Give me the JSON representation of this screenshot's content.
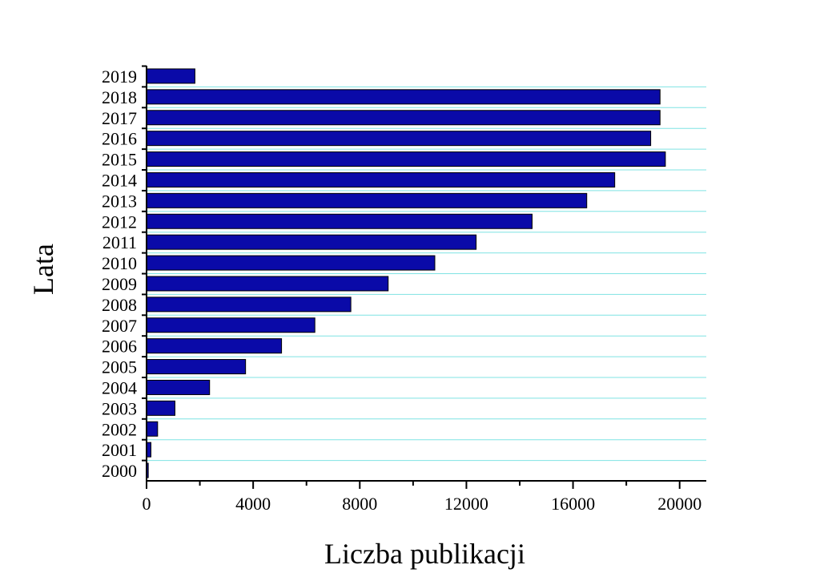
{
  "chart_data": {
    "type": "bar",
    "orientation": "horizontal",
    "title": "",
    "xlabel": "Liczba publikacji",
    "ylabel": "Lata",
    "categories": [
      "2000",
      "2001",
      "2002",
      "2003",
      "2004",
      "2005",
      "2006",
      "2007",
      "2008",
      "2009",
      "2010",
      "2011",
      "2012",
      "2013",
      "2014",
      "2015",
      "2016",
      "2017",
      "2018",
      "2019"
    ],
    "values": [
      50,
      150,
      400,
      1050,
      2350,
      3700,
      5050,
      6300,
      7650,
      9050,
      10800,
      12350,
      14450,
      16500,
      17550,
      19450,
      18900,
      19250,
      19250,
      1800
    ],
    "xlim": [
      0,
      21000
    ],
    "xticks": [
      "0",
      "4000",
      "8000",
      "12000",
      "16000",
      "20000"
    ],
    "grid": "horizontal lines between bars",
    "legend": "none",
    "colors": {
      "bar_fill": "#0a0aa8",
      "bar_stroke": "#000000",
      "grid": "#7fe3e3",
      "axis": "#000000"
    }
  }
}
